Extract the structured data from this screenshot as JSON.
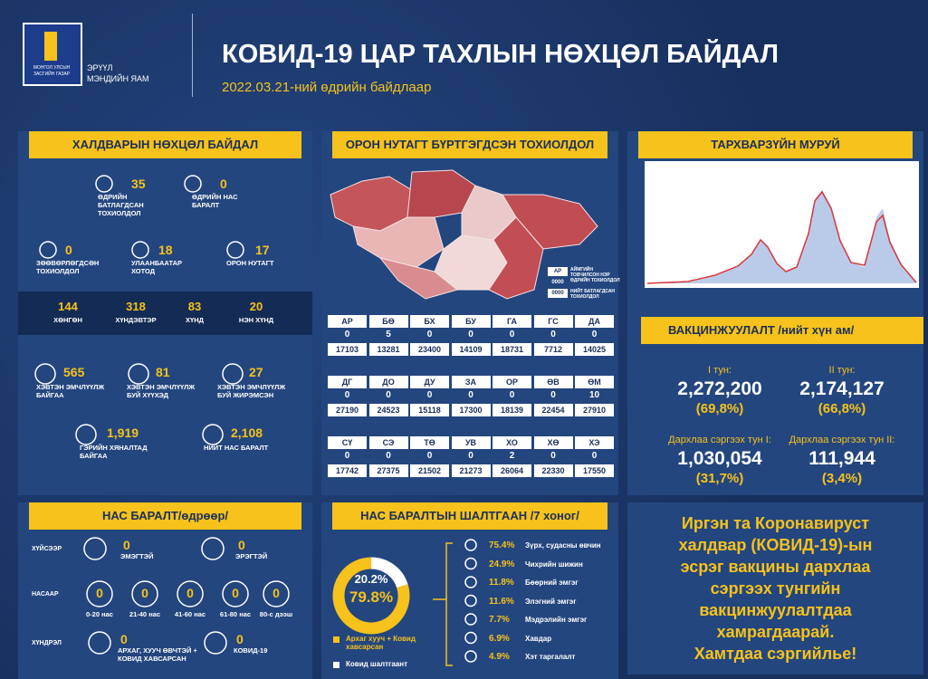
{
  "header": {
    "gov": "МОНГОЛ УЛСЫН ЗАСГИЙН ГАЗАР",
    "ministry_1": "ЭРҮҮЛ",
    "ministry_2": "МЭНДИЙН ЯАМ",
    "title": "КОВИД-19 ЦАР ТАХЛЫН НӨХЦӨЛ БАЙДАЛ",
    "date": "2022.03.21-ний өдрийн байдлаар"
  },
  "infection": {
    "title": "ХАЛДВАРЫН НӨХЦӨЛ БАЙДАЛ",
    "stats": [
      {
        "value": "35",
        "label": "ӨДРИЙН БАТЛАГДСАН ТОХИОЛДОЛ"
      },
      {
        "value": "0",
        "label": "ӨДРИЙН НАС БАРАЛТ"
      },
      {
        "value": "0",
        "label": "ЗӨӨВӨРЛӨГДСӨН ТОХИОЛДОЛ"
      },
      {
        "value": "18",
        "label": "УЛААНБААТАР ХОТОД"
      },
      {
        "value": "17",
        "label": "ОРОН НУТАГТ"
      }
    ],
    "severity": [
      {
        "value": "144",
        "label": "ХӨНГӨН"
      },
      {
        "value": "318",
        "label": "ХҮНДЭВТЭР"
      },
      {
        "value": "83",
        "label": "ХҮНД"
      },
      {
        "value": "20",
        "label": "НЭН ХҮНД"
      }
    ],
    "care": [
      {
        "value": "565",
        "label": "ХЭВТЭН ЭМЧЛҮҮЛЖ БАЙГАА"
      },
      {
        "value": "81",
        "label": "ХЭВТЭН ЭМЧЛҮҮЛЖ БУЙ ХҮҮХЭД"
      },
      {
        "value": "27",
        "label": "ХЭВТЭН ЭМЧЛҮҮЛЖ БУЙ ЖИРЭМСЭН"
      },
      {
        "value": "1,919",
        "label": "ГЭРИЙН ХЯНАЛТАД БАЙГАА"
      },
      {
        "value": "2,108",
        "label": "НИЙТ НАС БАРАЛТ"
      }
    ]
  },
  "regions": {
    "title": "ОРОН НУТАГТ БҮРТГЭГДСЭН ТОХИОЛДОЛ",
    "legend": [
      {
        "key": "АР",
        "text": "АЙМГИЙН ТОВЧИЛСОН НЭР"
      },
      {
        "key": "0000",
        "text": "ӨДРИЙН ТОХИОЛДОЛ"
      },
      {
        "key": "0000",
        "text": "НИЙТ БАТЛАГДСАН ТОХИОЛДОЛ"
      }
    ],
    "provinces": [
      [
        "АР",
        "0",
        "17103"
      ],
      [
        "БӨ",
        "5",
        "13281"
      ],
      [
        "БХ",
        "0",
        "23400"
      ],
      [
        "БУ",
        "0",
        "14109"
      ],
      [
        "ГА",
        "0",
        "18731"
      ],
      [
        "ГС",
        "0",
        "7712"
      ],
      [
        "ДА",
        "0",
        "14025"
      ],
      [
        "ДГ",
        "0",
        "27190"
      ],
      [
        "ДО",
        "0",
        "24523"
      ],
      [
        "ДУ",
        "0",
        "15118"
      ],
      [
        "ЗА",
        "0",
        "17300"
      ],
      [
        "ОР",
        "0",
        "18139"
      ],
      [
        "ӨВ",
        "0",
        "22454"
      ],
      [
        "ӨМ",
        "10",
        "27910"
      ],
      [
        "СҮ",
        "0",
        "17742"
      ],
      [
        "СЭ",
        "0",
        "27375"
      ],
      [
        "ТӨ",
        "0",
        "21502"
      ],
      [
        "УВ",
        "0",
        "21273"
      ],
      [
        "ХО",
        "2",
        "26064"
      ],
      [
        "ХӨ",
        "0",
        "22330"
      ],
      [
        "ХЭ",
        "0",
        "17550"
      ]
    ]
  },
  "curve": {
    "title": "ТАРХВАРЗҮЙН МУРУЙ"
  },
  "vaccine": {
    "title": "ВАКЦИНЖУУЛАЛТ /нийт хүн ам/",
    "items": [
      {
        "label": "I тун:",
        "value": "2,272,200",
        "pct": "(69,8%)"
      },
      {
        "label": "II тун:",
        "value": "2,174,127",
        "pct": "(66,8%)"
      },
      {
        "label": "Дархлаа сэргээх тун I:",
        "value": "1,030,054",
        "pct": "(31,7%)"
      },
      {
        "label": "Дархлаа сэргээх тун II:",
        "value": "111,944",
        "pct": "(3,4%)"
      }
    ]
  },
  "deaths": {
    "title": "НАС БАРАЛТ/өдрөөр/",
    "groups": [
      {
        "label": "ХҮЙСЭЭР",
        "items": [
          {
            "value": "0",
            "label": "ЭМЭГТЭЙ"
          },
          {
            "value": "0",
            "label": "ЭРЭГТЭЙ"
          }
        ]
      },
      {
        "label": "НАСААР",
        "items": [
          {
            "value": "0",
            "label": "0-20 нас"
          },
          {
            "value": "0",
            "label": "21-40 нас"
          },
          {
            "value": "0",
            "label": "41-60 нас"
          },
          {
            "value": "0",
            "label": "61-80 нас"
          },
          {
            "value": "0",
            "label": "80-с дээш"
          }
        ]
      },
      {
        "label": "ХҮНДРЭЛ",
        "items": [
          {
            "value": "0",
            "label": "АРХАГ, ХУУЧ ӨВЧТЭЙ + КОВИД ХАВСАРСАН"
          },
          {
            "value": "0",
            "label": "КОВИД-19"
          }
        ]
      }
    ]
  },
  "causes": {
    "title": "НАС БАРАЛТЫН ШАЛТГААН /7 хоног/",
    "donut": {
      "values": [
        20.2,
        79.8
      ],
      "value_labels": [
        "20.2%",
        "79.8%"
      ],
      "labels": [
        "Ковид шалтгаант",
        "Архаг хууч + Ковид хавсарсан"
      ],
      "colors": [
        "#ffffff",
        "#f6c21b"
      ]
    },
    "list": [
      {
        "value": "75.4%",
        "label": "Зүрх, судасны өвчин"
      },
      {
        "value": "24.9%",
        "label": "Чихрийн шижин"
      },
      {
        "value": "11.8%",
        "label": "Бөөрний эмгэг"
      },
      {
        "value": "11.6%",
        "label": "Элэгний эмгэг"
      },
      {
        "value": "7.7%",
        "label": "Мэдрэлийн эмгэг"
      },
      {
        "value": "6.9%",
        "label": "Хавдар"
      },
      {
        "value": "4.9%",
        "label": "Хэт таргалалт"
      }
    ]
  },
  "message": {
    "lines": [
      "Иргэн та Коронавируст",
      "халдвар (КОВИД-19)-ын",
      "эсрэг вакцины дархлаа",
      "сэргээх тунгийн",
      "вакцинжуулалтдаа",
      "хамрагдаарай.",
      "Хамтдаа сэргийлье!"
    ]
  }
}
